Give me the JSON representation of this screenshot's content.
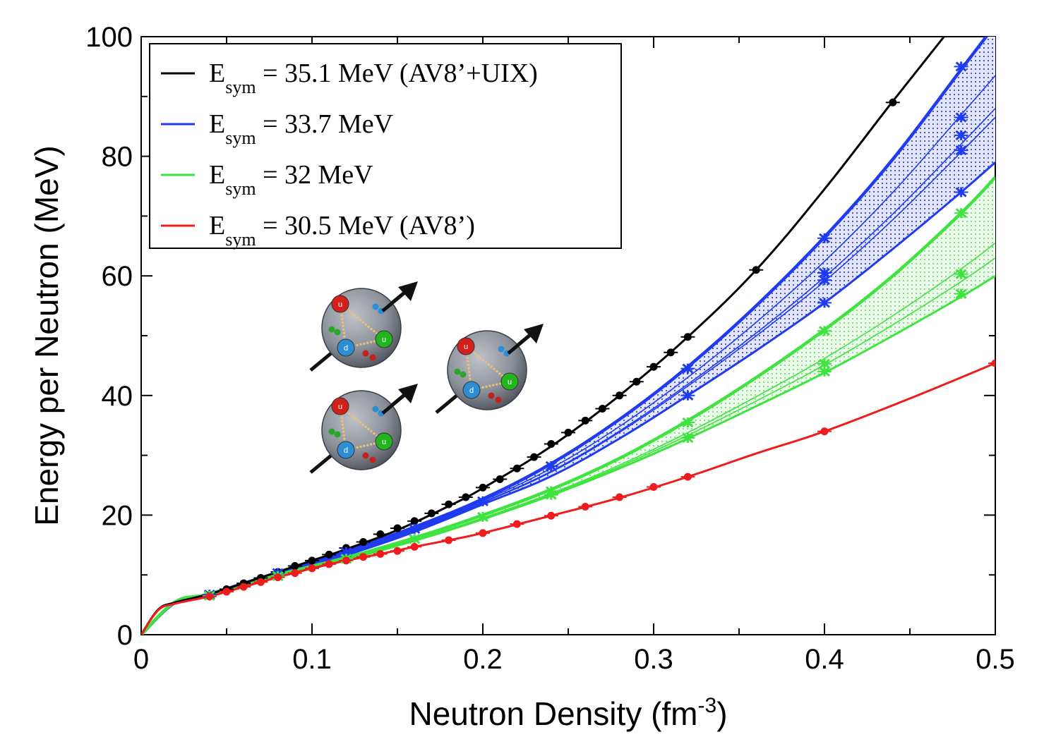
{
  "chart_data": {
    "type": "line",
    "xlabel": "Neutron Density (fm",
    "xlabel_sup": "-3",
    "xlabel_close": ")",
    "ylabel": "Energy per Neutron (MeV)",
    "xlim": [
      0,
      0.5
    ],
    "ylim": [
      0,
      100
    ],
    "xticks": [
      "0",
      "0.1",
      "0.2",
      "0.3",
      "0.4",
      "0.5"
    ],
    "yticks": [
      "0",
      "20",
      "40",
      "60",
      "80",
      "100"
    ],
    "legend_position": "top-left",
    "series": [
      {
        "name": "E",
        "name_sub": "sym",
        "name_rest": " = 35.1 MeV (AV8’+UIX)",
        "color": "#000000",
        "curve_x": [
          0.0,
          0.01,
          0.02,
          0.04,
          0.06,
          0.08,
          0.1,
          0.12,
          0.15,
          0.18,
          0.2,
          0.24,
          0.28,
          0.32,
          0.36,
          0.4,
          0.44,
          0.47
        ],
        "curve_y": [
          0,
          4.2,
          5.4,
          6.8,
          8.6,
          10.5,
          12.4,
          14.3,
          17.5,
          21.5,
          24.5,
          31.5,
          40.0,
          49.8,
          61.0,
          74.5,
          89.2,
          100
        ],
        "points_x": [
          0.04,
          0.05,
          0.06,
          0.07,
          0.08,
          0.09,
          0.1,
          0.11,
          0.12,
          0.13,
          0.14,
          0.15,
          0.16,
          0.17,
          0.18,
          0.19,
          0.2,
          0.21,
          0.22,
          0.23,
          0.24,
          0.25,
          0.26,
          0.27,
          0.28,
          0.29,
          0.3,
          0.31,
          0.32,
          0.36,
          0.44
        ],
        "points_y": [
          6.6,
          7.6,
          8.6,
          9.5,
          10.5,
          11.5,
          12.4,
          13.4,
          14.5,
          15.5,
          16.8,
          17.8,
          19.0,
          20.3,
          21.8,
          23.0,
          24.6,
          26.0,
          27.8,
          29.7,
          31.9,
          33.8,
          35.8,
          37.8,
          40.0,
          42.3,
          44.8,
          47.2,
          49.8,
          61.0,
          89.0
        ]
      },
      {
        "name": "E",
        "name_sub": "sym",
        "name_rest": " = 33.7 MeV",
        "color": "#1f3bef",
        "band_upper_x": [
          0.0,
          0.02,
          0.04,
          0.08,
          0.12,
          0.16,
          0.2,
          0.24,
          0.28,
          0.32,
          0.36,
          0.4,
          0.44,
          0.48,
          0.5
        ],
        "band_upper_y": [
          0,
          5.4,
          6.8,
          10.4,
          14.0,
          18.0,
          22.7,
          28.6,
          36.0,
          44.8,
          55.0,
          66.5,
          79.5,
          94.5,
          102
        ],
        "band_lower_x": [
          0.0,
          0.02,
          0.04,
          0.08,
          0.12,
          0.16,
          0.2,
          0.24,
          0.28,
          0.32,
          0.36,
          0.4,
          0.44,
          0.48,
          0.5
        ],
        "band_lower_y": [
          0,
          5.3,
          6.5,
          10.0,
          13.3,
          17.2,
          21.8,
          26.5,
          32.8,
          40.0,
          47.5,
          55.5,
          64.5,
          74.0,
          79.0
        ],
        "inner_curves_end": [
          93.5,
          88.0,
          86.5
        ],
        "points_x": [
          0.04,
          0.08,
          0.12,
          0.16,
          0.2,
          0.24,
          0.32,
          0.32,
          0.4,
          0.4,
          0.4,
          0.4,
          0.48,
          0.48,
          0.48,
          0.48,
          0.48
        ],
        "points_y": [
          6.7,
          10.3,
          13.8,
          17.7,
          22.3,
          28.2,
          44.5,
          40.0,
          66.3,
          60.5,
          59.3,
          55.5,
          95.0,
          86.5,
          83.5,
          81.0,
          74.0
        ]
      },
      {
        "name": "E",
        "name_sub": "sym",
        "name_rest": " = 32 MeV",
        "color": "#3fe33f",
        "band_upper_x": [
          0.0,
          0.02,
          0.04,
          0.08,
          0.12,
          0.16,
          0.2,
          0.24,
          0.28,
          0.32,
          0.36,
          0.4,
          0.44,
          0.48,
          0.5
        ],
        "band_upper_y": [
          0,
          5.5,
          6.8,
          10.0,
          12.9,
          16.2,
          20.0,
          24.3,
          29.5,
          35.8,
          43.0,
          51.0,
          60.0,
          70.5,
          76.5
        ],
        "band_lower_x": [
          0.0,
          0.02,
          0.04,
          0.08,
          0.12,
          0.16,
          0.2,
          0.24,
          0.28,
          0.32,
          0.36,
          0.4,
          0.44,
          0.48,
          0.5
        ],
        "band_lower_y": [
          0,
          5.4,
          6.5,
          9.7,
          12.5,
          15.7,
          19.3,
          23.3,
          27.8,
          32.8,
          38.2,
          43.8,
          50.0,
          56.5,
          60.0
        ],
        "inner_curves_end": [
          65.5,
          63.0
        ],
        "points_x": [
          0.04,
          0.08,
          0.12,
          0.16,
          0.2,
          0.24,
          0.24,
          0.32,
          0.32,
          0.4,
          0.4,
          0.4,
          0.48,
          0.48,
          0.48
        ],
        "points_y": [
          6.5,
          9.8,
          12.7,
          16.0,
          19.7,
          24.0,
          23.4,
          35.5,
          32.9,
          50.8,
          45.3,
          44.0,
          70.5,
          60.3,
          57.0
        ]
      },
      {
        "name": "E",
        "name_sub": "sym",
        "name_rest": " = 30.5 MeV (AV8’)",
        "color": "#ee1c1c",
        "curve_x": [
          0.0,
          0.01,
          0.02,
          0.04,
          0.06,
          0.08,
          0.1,
          0.12,
          0.14,
          0.16,
          0.18,
          0.2,
          0.24,
          0.28,
          0.32,
          0.36,
          0.4,
          0.45,
          0.5
        ],
        "curve_y": [
          0,
          4.1,
          5.2,
          6.4,
          8.0,
          9.6,
          11.1,
          12.4,
          13.5,
          14.7,
          15.8,
          17.0,
          19.9,
          22.9,
          26.4,
          30.3,
          34.0,
          39.5,
          45.4
        ],
        "points_x": [
          0.04,
          0.05,
          0.06,
          0.07,
          0.08,
          0.09,
          0.1,
          0.11,
          0.12,
          0.13,
          0.14,
          0.15,
          0.16,
          0.18,
          0.2,
          0.22,
          0.24,
          0.26,
          0.28,
          0.3,
          0.32,
          0.4,
          0.5
        ],
        "points_y": [
          6.4,
          7.2,
          8.0,
          8.8,
          9.6,
          10.3,
          11.1,
          11.8,
          12.4,
          13.0,
          13.5,
          14.0,
          14.7,
          15.8,
          17.0,
          18.5,
          19.9,
          21.4,
          23.0,
          24.7,
          26.4,
          34.0,
          45.4
        ]
      }
    ]
  },
  "inset": {
    "icon_names": [
      "neutron-spin-icon-1",
      "neutron-spin-icon-2",
      "neutron-spin-icon-3"
    ],
    "quark_labels": [
      "u",
      "d",
      "u"
    ],
    "quark_colors": [
      "#d4201a",
      "#2c8fd6",
      "#22b520"
    ]
  }
}
